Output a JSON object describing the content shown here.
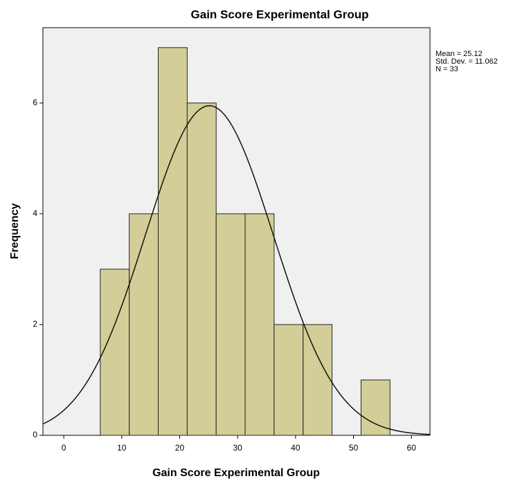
{
  "chart_data": {
    "type": "histogram",
    "title": "Gain Score Experimental Group",
    "x_label": "Gain Score Experimental Group",
    "y_label": "Frequency",
    "bins": [
      6.3,
      11.3,
      16.3,
      21.3,
      26.3,
      31.3,
      36.3,
      41.3,
      46.3,
      51.3,
      56.3
    ],
    "values": [
      3,
      4,
      7,
      6,
      4,
      4,
      2,
      2,
      0,
      1
    ],
    "color": "#d3ce98",
    "xlim": [
      -3.6,
      63.2
    ],
    "ylim": [
      0,
      7.36
    ],
    "xticks": [
      0,
      10,
      20,
      30,
      40,
      50,
      60
    ],
    "yticks": [
      0,
      2,
      4,
      6
    ],
    "annotations": [
      "Mean = 25.12",
      "Std. Dev. = 11.062",
      "N = 33"
    ],
    "normal_curve": {
      "mean": 25.12,
      "std": 11.062,
      "n": 33
    }
  }
}
